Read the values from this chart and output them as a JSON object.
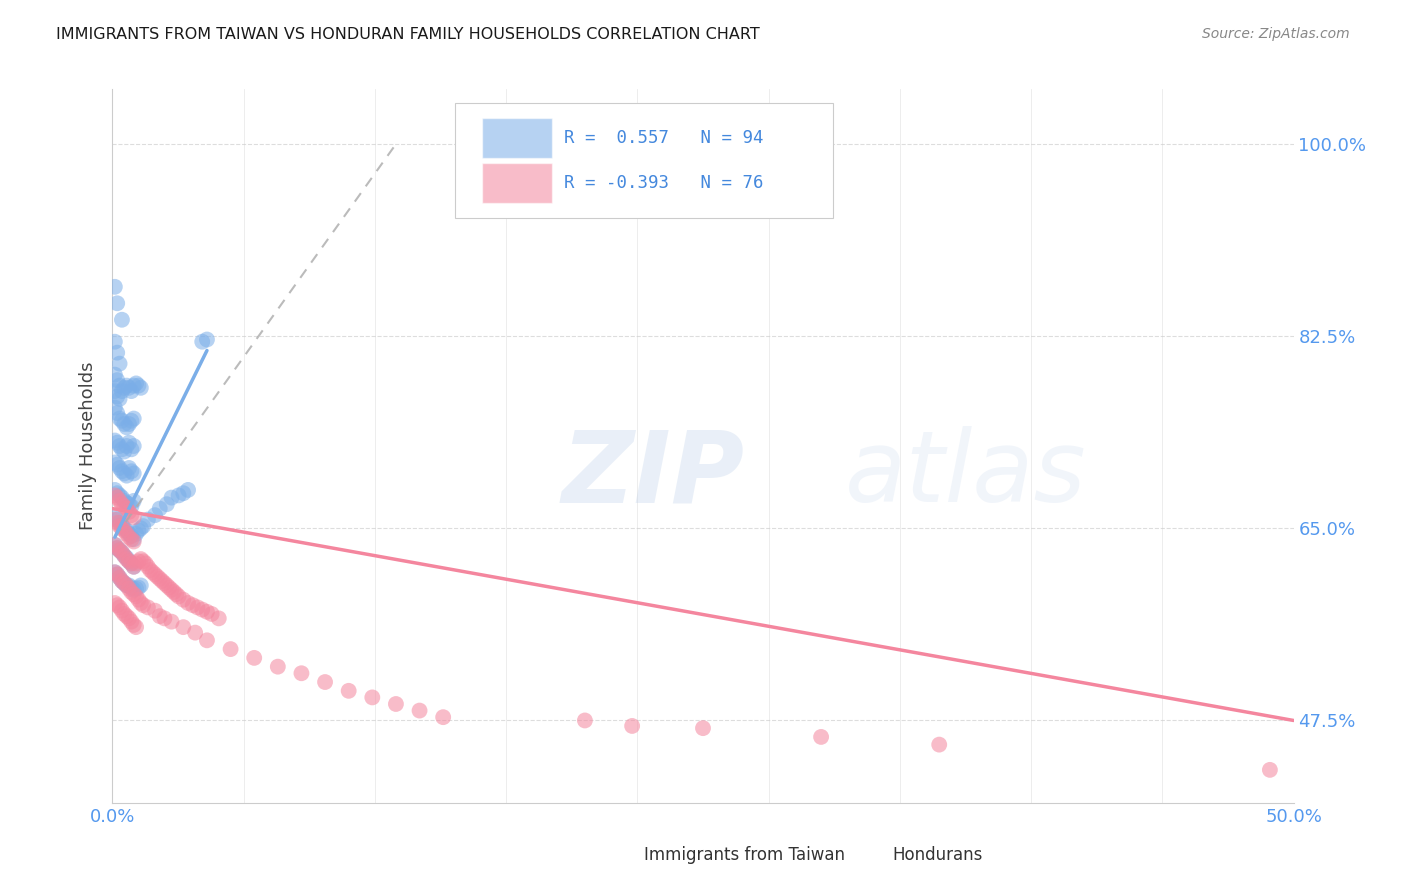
{
  "title": "IMMIGRANTS FROM TAIWAN VS HONDURAN FAMILY HOUSEHOLDS CORRELATION CHART",
  "source": "Source: ZipAtlas.com",
  "ylabel": "Family Households",
  "ytick_vals": [
    0.475,
    0.65,
    0.825,
    1.0
  ],
  "ytick_labels": [
    "47.5%",
    "65.0%",
    "82.5%",
    "100.0%"
  ],
  "xlim": [
    0.0,
    0.5
  ],
  "ylim": [
    0.4,
    1.05
  ],
  "taiwan_color": "#7baee8",
  "honduran_color": "#f4869e",
  "taiwan_scatter": [
    [
      0.001,
      0.87
    ],
    [
      0.002,
      0.855
    ],
    [
      0.004,
      0.84
    ],
    [
      0.001,
      0.82
    ],
    [
      0.002,
      0.81
    ],
    [
      0.003,
      0.8
    ],
    [
      0.001,
      0.79
    ],
    [
      0.002,
      0.785
    ],
    [
      0.003,
      0.78
    ],
    [
      0.001,
      0.775
    ],
    [
      0.002,
      0.77
    ],
    [
      0.003,
      0.768
    ],
    [
      0.004,
      0.775
    ],
    [
      0.005,
      0.778
    ],
    [
      0.006,
      0.78
    ],
    [
      0.007,
      0.778
    ],
    [
      0.008,
      0.775
    ],
    [
      0.009,
      0.78
    ],
    [
      0.01,
      0.782
    ],
    [
      0.011,
      0.78
    ],
    [
      0.012,
      0.778
    ],
    [
      0.001,
      0.76
    ],
    [
      0.002,
      0.755
    ],
    [
      0.003,
      0.75
    ],
    [
      0.004,
      0.748
    ],
    [
      0.005,
      0.745
    ],
    [
      0.006,
      0.742
    ],
    [
      0.007,
      0.745
    ],
    [
      0.008,
      0.748
    ],
    [
      0.009,
      0.75
    ],
    [
      0.001,
      0.73
    ],
    [
      0.002,
      0.728
    ],
    [
      0.003,
      0.725
    ],
    [
      0.004,
      0.722
    ],
    [
      0.005,
      0.72
    ],
    [
      0.006,
      0.725
    ],
    [
      0.007,
      0.728
    ],
    [
      0.008,
      0.722
    ],
    [
      0.009,
      0.725
    ],
    [
      0.001,
      0.71
    ],
    [
      0.002,
      0.708
    ],
    [
      0.003,
      0.705
    ],
    [
      0.004,
      0.702
    ],
    [
      0.005,
      0.7
    ],
    [
      0.006,
      0.698
    ],
    [
      0.007,
      0.705
    ],
    [
      0.008,
      0.702
    ],
    [
      0.009,
      0.7
    ],
    [
      0.001,
      0.685
    ],
    [
      0.002,
      0.682
    ],
    [
      0.003,
      0.68
    ],
    [
      0.004,
      0.678
    ],
    [
      0.005,
      0.675
    ],
    [
      0.006,
      0.673
    ],
    [
      0.007,
      0.672
    ],
    [
      0.008,
      0.67
    ],
    [
      0.009,
      0.675
    ],
    [
      0.001,
      0.66
    ],
    [
      0.002,
      0.658
    ],
    [
      0.003,
      0.655
    ],
    [
      0.004,
      0.653
    ],
    [
      0.005,
      0.65
    ],
    [
      0.006,
      0.648
    ],
    [
      0.007,
      0.645
    ],
    [
      0.008,
      0.643
    ],
    [
      0.009,
      0.64
    ],
    [
      0.01,
      0.645
    ],
    [
      0.011,
      0.648
    ],
    [
      0.012,
      0.65
    ],
    [
      0.013,
      0.652
    ],
    [
      0.015,
      0.658
    ],
    [
      0.018,
      0.662
    ],
    [
      0.02,
      0.668
    ],
    [
      0.023,
      0.672
    ],
    [
      0.025,
      0.678
    ],
    [
      0.028,
      0.68
    ],
    [
      0.03,
      0.682
    ],
    [
      0.032,
      0.685
    ],
    [
      0.001,
      0.635
    ],
    [
      0.002,
      0.632
    ],
    [
      0.003,
      0.63
    ],
    [
      0.004,
      0.628
    ],
    [
      0.005,
      0.625
    ],
    [
      0.006,
      0.623
    ],
    [
      0.007,
      0.62
    ],
    [
      0.008,
      0.618
    ],
    [
      0.009,
      0.615
    ],
    [
      0.001,
      0.61
    ],
    [
      0.002,
      0.608
    ],
    [
      0.003,
      0.605
    ],
    [
      0.004,
      0.602
    ],
    [
      0.005,
      0.6
    ],
    [
      0.006,
      0.598
    ],
    [
      0.007,
      0.598
    ],
    [
      0.008,
      0.596
    ],
    [
      0.009,
      0.594
    ],
    [
      0.01,
      0.595
    ],
    [
      0.011,
      0.596
    ],
    [
      0.012,
      0.598
    ],
    [
      0.038,
      0.82
    ],
    [
      0.04,
      0.822
    ]
  ],
  "honduran_scatter": [
    [
      0.001,
      0.68
    ],
    [
      0.002,
      0.678
    ],
    [
      0.003,
      0.675
    ],
    [
      0.004,
      0.672
    ],
    [
      0.005,
      0.67
    ],
    [
      0.006,
      0.668
    ],
    [
      0.007,
      0.665
    ],
    [
      0.008,
      0.662
    ],
    [
      0.009,
      0.66
    ],
    [
      0.001,
      0.658
    ],
    [
      0.002,
      0.655
    ],
    [
      0.003,
      0.652
    ],
    [
      0.004,
      0.65
    ],
    [
      0.005,
      0.648
    ],
    [
      0.006,
      0.645
    ],
    [
      0.007,
      0.642
    ],
    [
      0.008,
      0.64
    ],
    [
      0.009,
      0.638
    ],
    [
      0.001,
      0.635
    ],
    [
      0.002,
      0.632
    ],
    [
      0.003,
      0.63
    ],
    [
      0.004,
      0.628
    ],
    [
      0.005,
      0.625
    ],
    [
      0.006,
      0.622
    ],
    [
      0.007,
      0.62
    ],
    [
      0.008,
      0.618
    ],
    [
      0.009,
      0.615
    ],
    [
      0.01,
      0.618
    ],
    [
      0.011,
      0.62
    ],
    [
      0.012,
      0.622
    ],
    [
      0.013,
      0.62
    ],
    [
      0.014,
      0.618
    ],
    [
      0.015,
      0.615
    ],
    [
      0.016,
      0.612
    ],
    [
      0.017,
      0.61
    ],
    [
      0.018,
      0.608
    ],
    [
      0.019,
      0.606
    ],
    [
      0.02,
      0.604
    ],
    [
      0.021,
      0.602
    ],
    [
      0.022,
      0.6
    ],
    [
      0.023,
      0.598
    ],
    [
      0.024,
      0.596
    ],
    [
      0.025,
      0.594
    ],
    [
      0.026,
      0.592
    ],
    [
      0.027,
      0.59
    ],
    [
      0.028,
      0.588
    ],
    [
      0.03,
      0.585
    ],
    [
      0.032,
      0.582
    ],
    [
      0.034,
      0.58
    ],
    [
      0.036,
      0.578
    ],
    [
      0.038,
      0.576
    ],
    [
      0.04,
      0.574
    ],
    [
      0.042,
      0.572
    ],
    [
      0.045,
      0.568
    ],
    [
      0.001,
      0.61
    ],
    [
      0.002,
      0.608
    ],
    [
      0.003,
      0.605
    ],
    [
      0.004,
      0.602
    ],
    [
      0.005,
      0.6
    ],
    [
      0.006,
      0.598
    ],
    [
      0.007,
      0.595
    ],
    [
      0.008,
      0.592
    ],
    [
      0.009,
      0.59
    ],
    [
      0.01,
      0.588
    ],
    [
      0.011,
      0.585
    ],
    [
      0.012,
      0.582
    ],
    [
      0.013,
      0.58
    ],
    [
      0.015,
      0.578
    ],
    [
      0.018,
      0.575
    ],
    [
      0.02,
      0.57
    ],
    [
      0.022,
      0.568
    ],
    [
      0.025,
      0.565
    ],
    [
      0.03,
      0.56
    ],
    [
      0.035,
      0.555
    ],
    [
      0.04,
      0.548
    ],
    [
      0.05,
      0.54
    ],
    [
      0.06,
      0.532
    ],
    [
      0.07,
      0.524
    ],
    [
      0.08,
      0.518
    ],
    [
      0.09,
      0.51
    ],
    [
      0.1,
      0.502
    ],
    [
      0.11,
      0.496
    ],
    [
      0.12,
      0.49
    ],
    [
      0.13,
      0.484
    ],
    [
      0.14,
      0.478
    ],
    [
      0.001,
      0.582
    ],
    [
      0.002,
      0.58
    ],
    [
      0.003,
      0.578
    ],
    [
      0.004,
      0.575
    ],
    [
      0.005,
      0.572
    ],
    [
      0.006,
      0.57
    ],
    [
      0.007,
      0.568
    ],
    [
      0.008,
      0.565
    ],
    [
      0.009,
      0.562
    ],
    [
      0.01,
      0.56
    ],
    [
      0.2,
      0.475
    ],
    [
      0.22,
      0.47
    ],
    [
      0.25,
      0.468
    ],
    [
      0.3,
      0.46
    ],
    [
      0.35,
      0.453
    ],
    [
      0.49,
      0.43
    ]
  ],
  "taiwan_trendline_solid": [
    [
      0.001,
      0.642
    ],
    [
      0.04,
      0.812
    ]
  ],
  "taiwan_trendline_dashed": [
    [
      0.001,
      0.642
    ],
    [
      0.12,
      1.0
    ]
  ],
  "honduran_trendline": [
    [
      0.0,
      0.668
    ],
    [
      0.5,
      0.475
    ]
  ],
  "watermark_zip": "ZIP",
  "watermark_atlas": "atlas",
  "bg_color": "#ffffff",
  "grid_color": "#dddddd",
  "tick_color": "#5599ee",
  "title_color": "#1a1a1a",
  "legend_r_color": "#4488dd",
  "source_color": "#888888"
}
